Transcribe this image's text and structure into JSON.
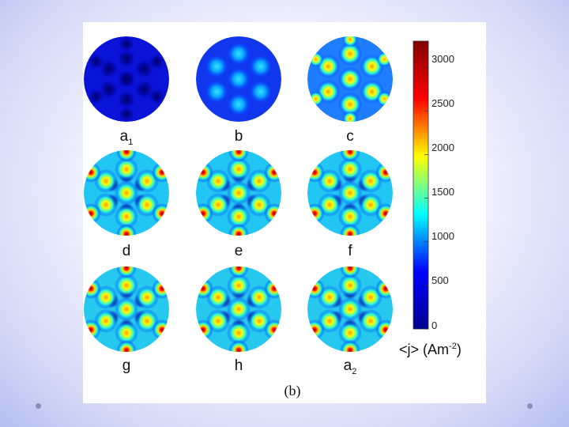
{
  "figure": {
    "caption": "(b)",
    "panels": [
      {
        "id": "a1",
        "letter": "a",
        "subscript": "1"
      },
      {
        "id": "b",
        "letter": "b",
        "subscript": ""
      },
      {
        "id": "c",
        "letter": "c",
        "subscript": ""
      },
      {
        "id": "d",
        "letter": "d",
        "subscript": ""
      },
      {
        "id": "e",
        "letter": "e",
        "subscript": ""
      },
      {
        "id": "f",
        "letter": "f",
        "subscript": ""
      },
      {
        "id": "g",
        "letter": "g",
        "subscript": ""
      },
      {
        "id": "h",
        "letter": "h",
        "subscript": ""
      },
      {
        "id": "a2",
        "letter": "a",
        "subscript": "2"
      }
    ],
    "colorbar": {
      "ticks": [
        "3000",
        "2500",
        "2000",
        "1500",
        "1000",
        "500",
        "0"
      ],
      "tick_values": [
        3000,
        2500,
        2000,
        1500,
        1000,
        500,
        0
      ],
      "range": [
        0,
        3300
      ],
      "unit_base": "<j> (Am",
      "unit_exp": "-2",
      "unit_close": ")",
      "colormap": [
        "#00008f",
        "#0000ff",
        "#00ffff",
        "#ffff00",
        "#ff0000",
        "#800000"
      ]
    }
  }
}
